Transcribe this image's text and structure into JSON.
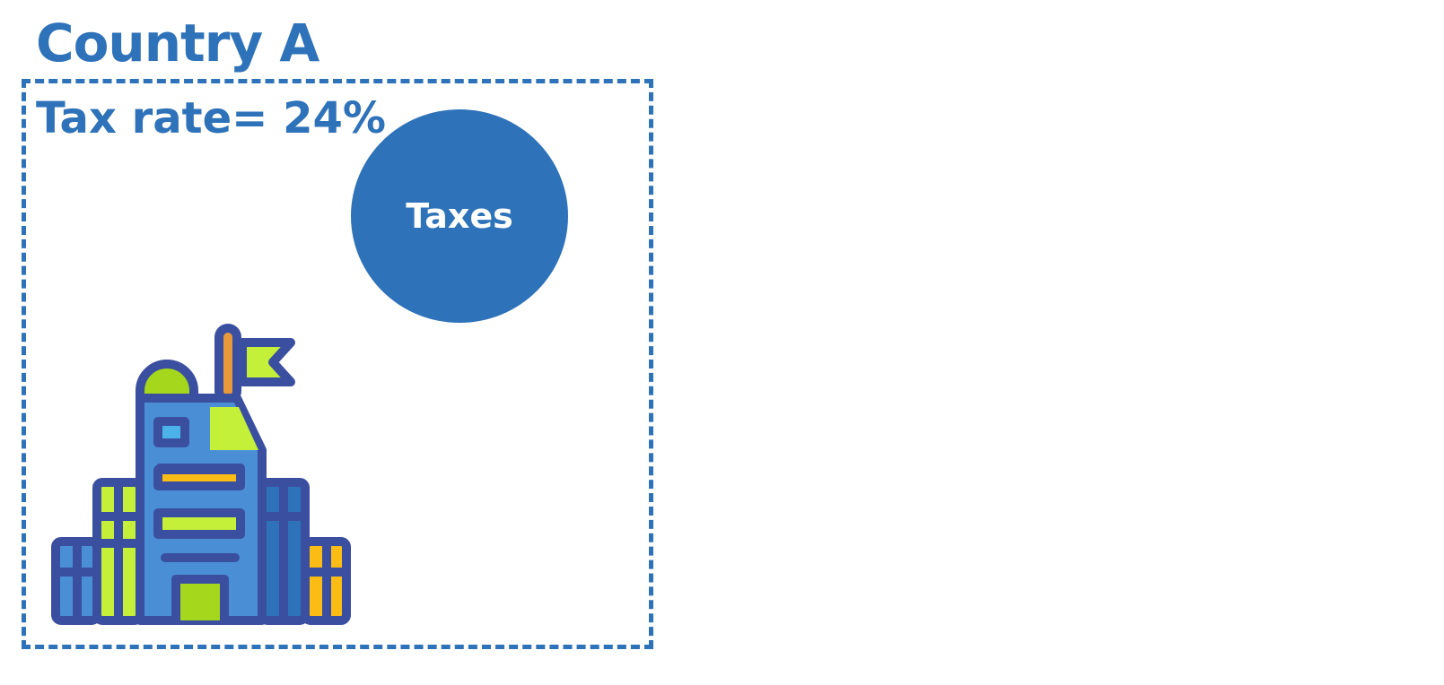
{
  "title": "Country A",
  "tax_rate_label": "Tax rate= 24%",
  "circle_label": "Taxes",
  "icon": "government-building-icon",
  "colors": {
    "accent": "#2e72b9",
    "building_outline": "#3b4fa0",
    "building_blue": "#4a8fd6",
    "building_green": "#c4f03a",
    "building_yellow": "#fbbc15",
    "building_orange": "#e89a3a",
    "window_blue": "#4cb3ea"
  }
}
